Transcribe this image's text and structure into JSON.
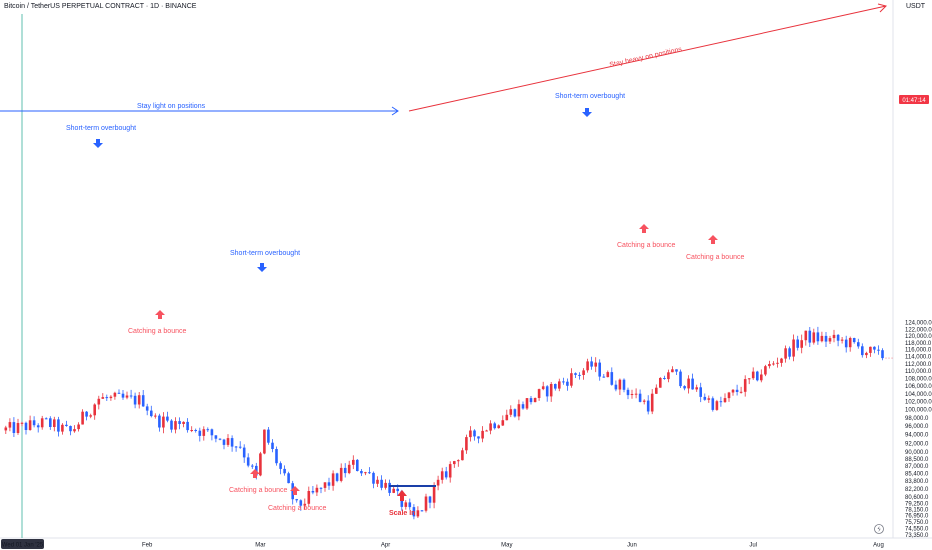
{
  "header": {
    "title": "Bitcoin / TetherUS PERPETUAL CONTRACT · 1D · BINANCE",
    "currency": "USDT"
  },
  "colors": {
    "bull": "#e8323c",
    "bear": "#2962ff",
    "blue_text": "#2962ff",
    "red_text": "#e8323c",
    "price_tag": "#f23645"
  },
  "chart_data": {
    "type": "candlestick",
    "y_scale": "log",
    "ylim": [
      72000,
      125000
    ],
    "y_ticks": [
      "124,000.0",
      "122,000.0",
      "120,000.0",
      "118,000.0",
      "116,000.0",
      "114,000.0",
      "112,000.0",
      "110,000.0",
      "108,000.0",
      "106,000.0",
      "104,000.0",
      "102,000.0",
      "100,000.0",
      "98,000.0",
      "96,000.0",
      "94,000.0",
      "92,000.0",
      "90,000.0",
      "88,500.0",
      "87,000.0",
      "85,400.0",
      "83,800.0",
      "82,200.0",
      "80,600.0",
      "79,250.0",
      "78,150.0",
      "76,950.0",
      "75,750.0",
      "74,550.0",
      "73,350.0"
    ],
    "x_ticks": [
      {
        "label": "Wed 01 Jan '25",
        "date": "2025-01-01"
      },
      {
        "label": "Feb",
        "date": "2025-02-01"
      },
      {
        "label": "Mar",
        "date": "2025-03-01"
      },
      {
        "label": "Apr",
        "date": "2025-04-01"
      },
      {
        "label": "May",
        "date": "2025-05-01"
      },
      {
        "label": "Jun",
        "date": "2025-06-01"
      },
      {
        "label": "Jul",
        "date": "2025-07-01"
      },
      {
        "label": "Aug",
        "date": "2025-08-01"
      }
    ],
    "current_price_tag": "01:47:14",
    "current_price": 113600,
    "closes": [
      {
        "date": "2024-12-27",
        "close": 95000
      },
      {
        "date": "2025-01-07",
        "close": 96800
      },
      {
        "date": "2025-01-13",
        "close": 94500
      },
      {
        "date": "2025-01-20",
        "close": 102800
      },
      {
        "date": "2025-01-31",
        "close": 102300
      },
      {
        "date": "2025-02-03",
        "close": 97500
      },
      {
        "date": "2025-02-10",
        "close": 96400
      },
      {
        "date": "2025-02-24",
        "close": 91500
      },
      {
        "date": "2025-02-28",
        "close": 84300
      },
      {
        "date": "2025-03-02",
        "close": 94300
      },
      {
        "date": "2025-03-10",
        "close": 78600
      },
      {
        "date": "2025-03-24",
        "close": 87300
      },
      {
        "date": "2025-04-02",
        "close": 82500
      },
      {
        "date": "2025-04-08",
        "close": 76300
      },
      {
        "date": "2025-04-22",
        "close": 93400
      },
      {
        "date": "2025-05-08",
        "close": 103200
      },
      {
        "date": "2025-05-22",
        "close": 111500
      },
      {
        "date": "2025-06-05",
        "close": 101200
      },
      {
        "date": "2025-06-10",
        "close": 110200
      },
      {
        "date": "2025-06-22",
        "close": 100900
      },
      {
        "date": "2025-07-02",
        "close": 108800
      },
      {
        "date": "2025-07-14",
        "close": 119800
      },
      {
        "date": "2025-07-24",
        "close": 118200
      },
      {
        "date": "2025-08-02",
        "close": 113600
      }
    ],
    "annotations": {
      "stay_light": "Stay light on positions",
      "stay_heavy": "Stay heavy on positions",
      "overbought_1": "Short-term overbought",
      "overbought_2": "Short-term overbought",
      "overbought_3": "Short-term overbought",
      "bounce_1": "Catching a bounce",
      "bounce_2": "Catching a bounce",
      "bounce_3": "Catching a bounce",
      "bounce_4": "Catching a bounce",
      "bounce_5": "Catching a bounce",
      "scale_in": "Scale In"
    }
  }
}
